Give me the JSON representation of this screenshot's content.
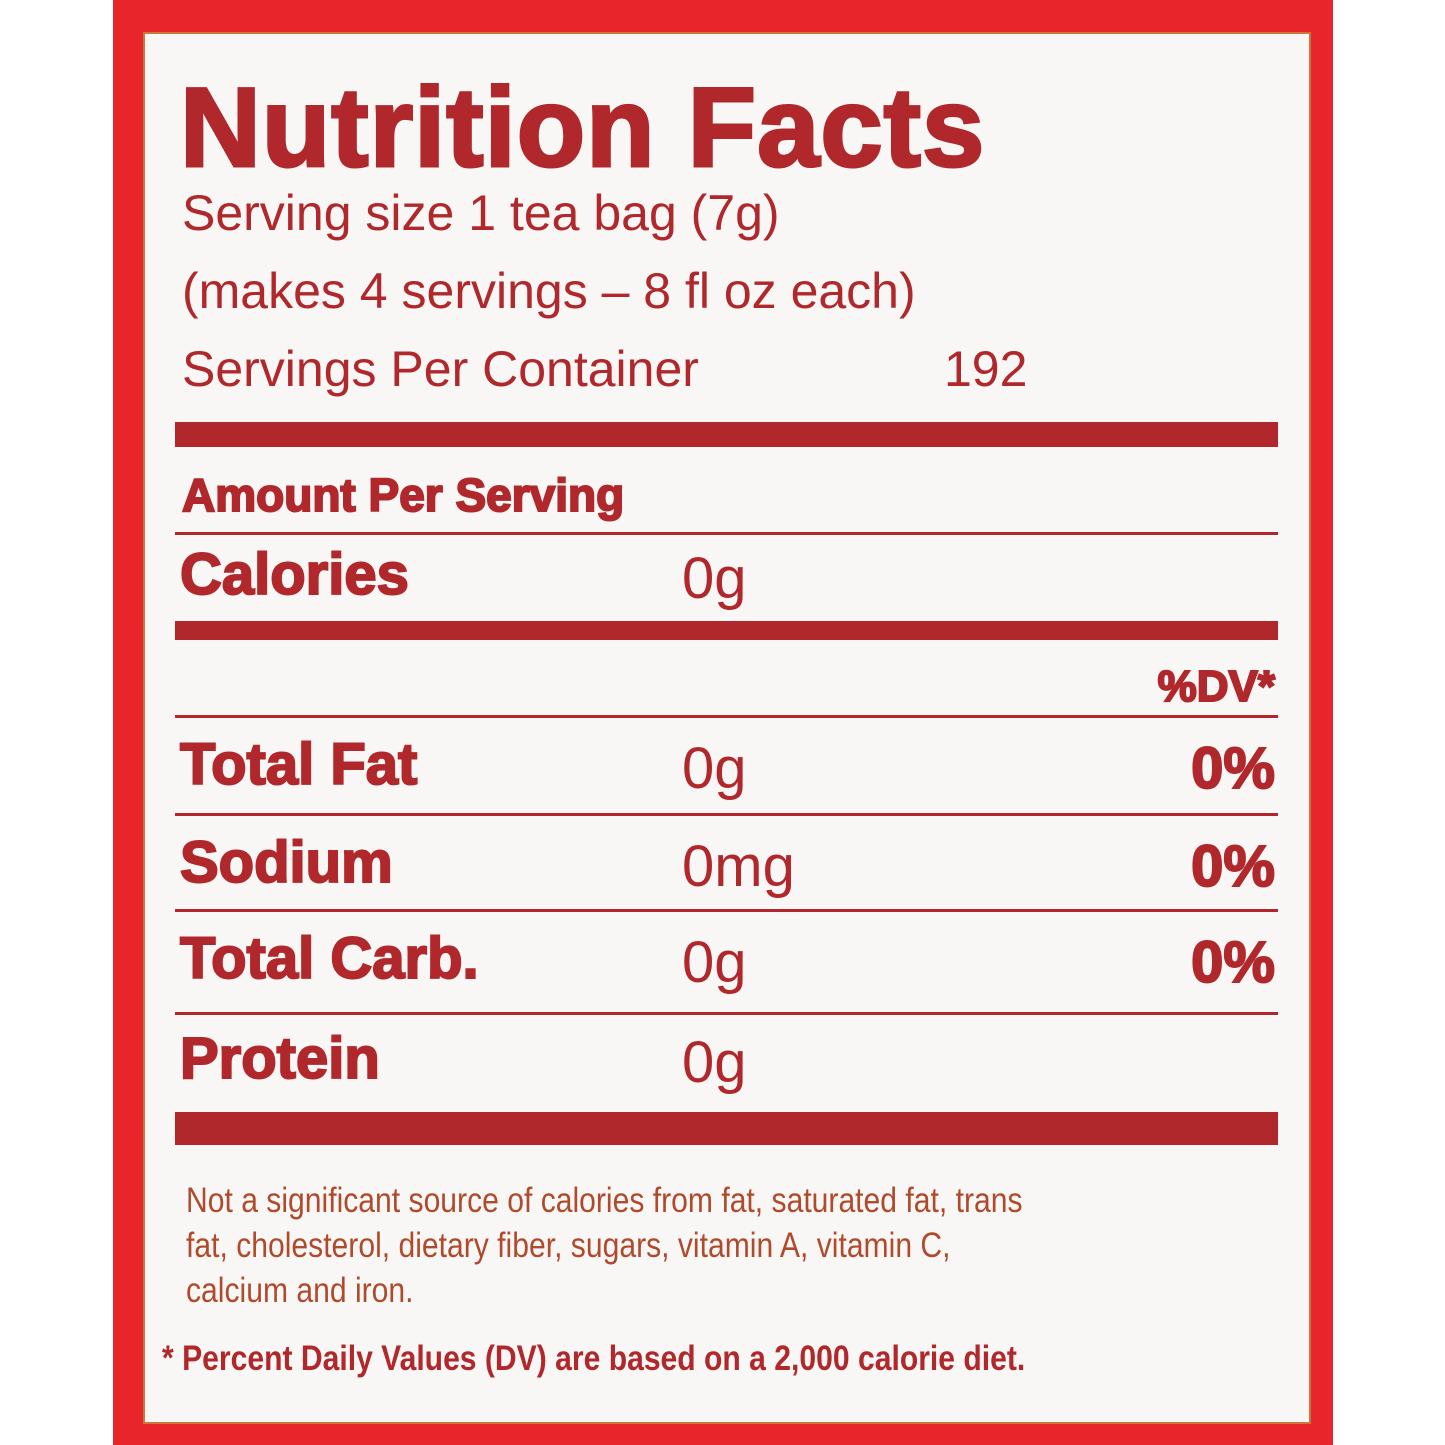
{
  "title": "Nutrition Facts",
  "serving": {
    "size": "Serving size 1 tea bag (7g)",
    "makes": "(makes 4 servings – 8 fl oz each)",
    "per_container_label": "Servings Per Container",
    "per_container_value": "192"
  },
  "amount_per_serving": "Amount Per Serving",
  "calories": {
    "label": "Calories",
    "amount": "0g"
  },
  "dv_header": "%DV*",
  "nutrients": [
    {
      "label": "Total Fat",
      "amount": "0g",
      "dv": "0%"
    },
    {
      "label": "Sodium",
      "amount": "0mg",
      "dv": "0%"
    },
    {
      "label": "Total Carb.",
      "amount": "0g",
      "dv": "0%"
    },
    {
      "label": "Protein",
      "amount": "0g",
      "dv": ""
    }
  ],
  "footnote_1": [
    "Not a significant source of calories from fat, saturated fat, trans",
    "fat, cholesterol, dietary fiber, sugars, vitamin A, vitamin C,",
    "calcium and iron."
  ],
  "footnote_2": "* Percent Daily Values (DV) are based on a 2,000 calorie diet.",
  "colors": {
    "border": "#e7252b",
    "text": "#b0282c",
    "panel": "#f8f7f5"
  }
}
